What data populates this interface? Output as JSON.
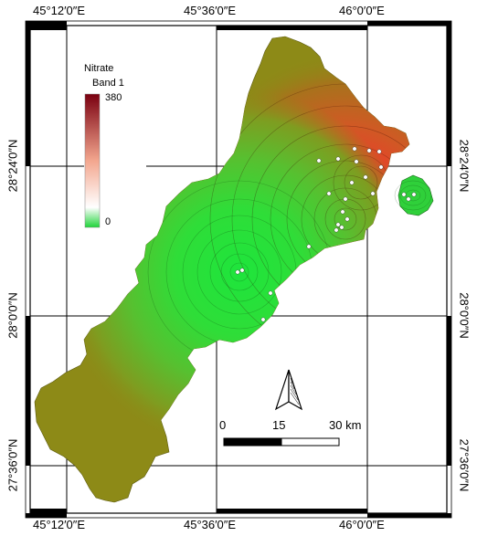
{
  "grid_labels": {
    "lon_top": [
      "45°12′0″E",
      "45°36′0″E",
      "46°0′0″E"
    ],
    "lon_bottom": [
      "45°12′0″E",
      "45°36′0″E",
      "46°0′0″E"
    ],
    "lat_left": [
      "28°24′0″N",
      "28°0′0″N",
      "27°36′0″N"
    ],
    "lat_right": [
      "28°24′0″N",
      "28°0′0″N",
      "27°36′0″N"
    ]
  },
  "legend": {
    "title": "Nitrate",
    "band": "Band 1",
    "max_label": "380",
    "min_label": "0",
    "colors": {
      "high": "#7a0010",
      "mid": "#f5c0b0",
      "low": "#1fd43a"
    }
  },
  "scale_bar": {
    "labels": [
      "0",
      "15",
      "30 km"
    ]
  },
  "north_arrow": {
    "icon": "north-arrow-icon"
  },
  "map_colors": {
    "olive": "#8d8a17",
    "green": "#22dd3c",
    "red": "#e83030",
    "dark_red": "#6a0000"
  }
}
